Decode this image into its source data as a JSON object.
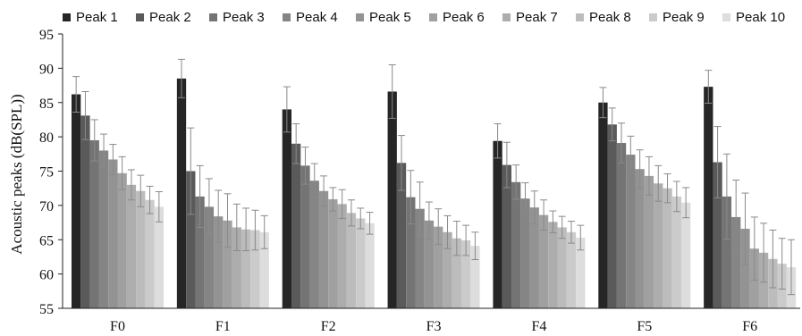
{
  "chart_data": {
    "type": "bar",
    "title": "",
    "xlabel": "",
    "ylabel": "Acoustic peaks (dB(SPL))",
    "ylim": [
      55,
      95
    ],
    "yticks": [
      55,
      60,
      65,
      70,
      75,
      80,
      85,
      90,
      95
    ],
    "grid": false,
    "legend_position": "top",
    "error_bars": true,
    "categories": [
      "F0",
      "F1",
      "F2",
      "F3",
      "F4",
      "F5",
      "F6"
    ],
    "series": [
      {
        "name": "Peak 1",
        "color": "#262626",
        "values": [
          86.2,
          88.5,
          84.0,
          86.6,
          79.4,
          85.0,
          87.3
        ],
        "errors": [
          2.6,
          2.8,
          3.3,
          3.9,
          2.5,
          2.2,
          2.4
        ]
      },
      {
        "name": "Peak 2",
        "color": "#5a5a5a",
        "values": [
          83.1,
          75.0,
          79.0,
          76.2,
          75.9,
          81.8,
          76.3
        ],
        "errors": [
          3.5,
          6.3,
          2.9,
          4.0,
          3.3,
          2.4,
          5.2
        ]
      },
      {
        "name": "Peak 3",
        "color": "#747474",
        "values": [
          79.5,
          71.3,
          75.8,
          71.2,
          73.4,
          79.1,
          71.3
        ],
        "errors": [
          3.0,
          4.5,
          2.7,
          3.9,
          2.5,
          2.9,
          6.2
        ]
      },
      {
        "name": "Peak 4",
        "color": "#858585",
        "values": [
          78.0,
          69.8,
          73.6,
          69.5,
          71.0,
          77.4,
          68.3
        ],
        "errors": [
          2.4,
          4.1,
          2.5,
          3.9,
          2.3,
          2.7,
          5.4
        ]
      },
      {
        "name": "Peak 5",
        "color": "#939393",
        "values": [
          76.7,
          68.4,
          72.1,
          67.8,
          69.7,
          75.3,
          66.6
        ],
        "errors": [
          2.2,
          3.8,
          2.2,
          2.7,
          2.4,
          2.8,
          5.2
        ]
      },
      {
        "name": "Peak 6",
        "color": "#a0a0a0",
        "values": [
          74.7,
          67.8,
          70.9,
          66.9,
          68.6,
          74.3,
          63.7
        ],
        "errors": [
          2.4,
          3.9,
          1.7,
          2.6,
          2.2,
          2.8,
          4.6
        ]
      },
      {
        "name": "Peak 7",
        "color": "#adadad",
        "values": [
          73.0,
          66.8,
          70.2,
          66.1,
          67.6,
          73.2,
          63.1
        ],
        "errors": [
          2.2,
          3.4,
          2.1,
          2.4,
          1.6,
          2.6,
          4.3
        ]
      },
      {
        "name": "Peak 8",
        "color": "#bcbcbc",
        "values": [
          72.1,
          66.5,
          68.9,
          65.2,
          66.8,
          72.5,
          62.2
        ],
        "errors": [
          2.3,
          3.1,
          1.9,
          2.5,
          1.6,
          2.1,
          4.2
        ]
      },
      {
        "name": "Peak 9",
        "color": "#cbcbcb",
        "values": [
          70.8,
          66.4,
          68.1,
          64.9,
          66.1,
          71.3,
          61.5
        ],
        "errors": [
          2.0,
          2.9,
          1.5,
          2.2,
          1.6,
          2.2,
          3.7
        ]
      },
      {
        "name": "Peak 10",
        "color": "#dddddd",
        "values": [
          69.8,
          66.1,
          67.4,
          64.1,
          65.3,
          70.4,
          61.0
        ],
        "errors": [
          2.2,
          2.4,
          1.6,
          2.0,
          1.8,
          2.2,
          4.0
        ]
      }
    ]
  }
}
